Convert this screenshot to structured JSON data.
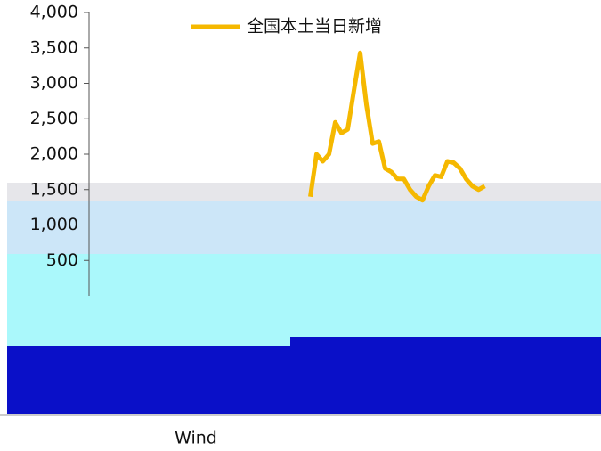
{
  "chart_data": {
    "type": "line",
    "source": "Wind",
    "categories": [
      null,
      null,
      null,
      null,
      null,
      null,
      null,
      null,
      null,
      null,
      null,
      null,
      null,
      null,
      null,
      null,
      null,
      null,
      null,
      null,
      null,
      null,
      null,
      null,
      null,
      null,
      null,
      null,
      null,
      null,
      null,
      null,
      null,
      null,
      null,
      null,
      null,
      null,
      null,
      null,
      null,
      null,
      null,
      null,
      null,
      null,
      null,
      null,
      null,
      null,
      null,
      null,
      null,
      null,
      null,
      null,
      null,
      null,
      null,
      null,
      null,
      null,
      null,
      null,
      null,
      null,
      null,
      null,
      null,
      null,
      null,
      null,
      null,
      null,
      null,
      null,
      null,
      null,
      null
    ],
    "series": [
      {
        "name": "全国本土当日新增",
        "color": "#f5b800",
        "values": [
          null,
          null,
          null,
          null,
          null,
          null,
          null,
          null,
          null,
          null,
          null,
          null,
          null,
          null,
          null,
          null,
          null,
          null,
          null,
          null,
          null,
          null,
          null,
          null,
          null,
          null,
          null,
          null,
          null,
          null,
          null,
          null,
          null,
          null,
          null,
          1400,
          2000,
          1900,
          2000,
          2450,
          2300,
          2350,
          2900,
          3430,
          2700,
          2150,
          2180,
          1800,
          1750,
          1650,
          1650,
          1500,
          1400,
          1350,
          1550,
          1700,
          1680,
          1900,
          1880,
          1800,
          1650,
          1550,
          1500,
          1550,
          null,
          null,
          null,
          null,
          null,
          null,
          null,
          null,
          null,
          null,
          null,
          null,
          null,
          null,
          null
        ]
      }
    ],
    "ylim": [
      0,
      4000
    ],
    "yticks": [
      {
        "value": 500,
        "label": "500"
      },
      {
        "value": 1000,
        "label": "1,000"
      },
      {
        "value": 1500,
        "label": "1,500"
      },
      {
        "value": 2000,
        "label": "2,000"
      },
      {
        "value": 2500,
        "label": "2,500"
      },
      {
        "value": 3000,
        "label": "3,000"
      },
      {
        "value": 3500,
        "label": "3,500"
      },
      {
        "value": 4000,
        "label": "4,000"
      }
    ],
    "legend": "top"
  }
}
